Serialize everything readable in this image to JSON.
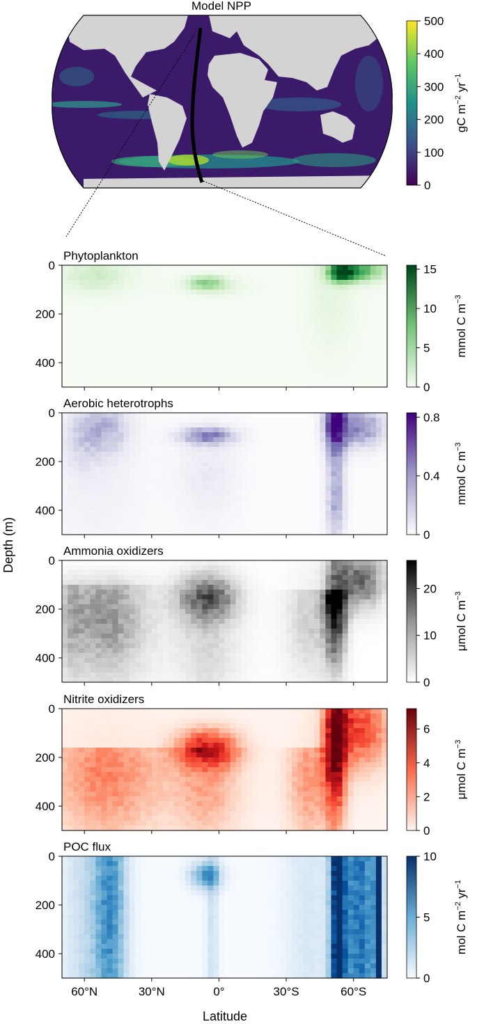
{
  "map": {
    "title": "Model NPP",
    "colorbar": {
      "label": "gC m",
      "label_sup1": "−2",
      "label_mid": " yr",
      "label_sup2": "−1",
      "ticks": [
        "0",
        "100",
        "200",
        "300",
        "400",
        "500"
      ],
      "range": [
        0,
        500
      ],
      "colormap": "viridis"
    },
    "colors": {
      "land": "#d3d3d3",
      "ocean_low": "#440154",
      "ocean_high": "#fde725",
      "transect": "#000000"
    }
  },
  "shared": {
    "ylabel": "Depth (m)",
    "xlabel": "Latitude",
    "x_ticks": [
      "60°N",
      "30°N",
      "0°",
      "30°S",
      "60°S"
    ],
    "y_ticks": [
      "0",
      "200",
      "400"
    ]
  },
  "chart_data": [
    {
      "type": "heatmap",
      "title": "Phytoplankton",
      "cbar_label": "mmol C m",
      "cbar_sup": "−3",
      "cbar_ticks": [
        "0",
        "5",
        "10",
        "15"
      ],
      "vmax": 15.5,
      "colormap": "Greens",
      "ylim": [
        500,
        0
      ],
      "xlim": [
        "70°N",
        "75°S"
      ]
    },
    {
      "type": "heatmap",
      "title": "Aerobic heterotrophs",
      "cbar_label": "mmol C m",
      "cbar_sup": "−3",
      "cbar_ticks": [
        "0",
        "0.4",
        "0.8"
      ],
      "vmax": 0.83,
      "colormap": "Purples",
      "ylim": [
        500,
        0
      ],
      "xlim": [
        "70°N",
        "75°S"
      ]
    },
    {
      "type": "heatmap",
      "title": "Ammonia oxidizers",
      "cbar_label": "μmol C m",
      "cbar_sup": "−3",
      "cbar_ticks": [
        "0",
        "10",
        "20"
      ],
      "vmax": 26,
      "colormap": "Greys",
      "ylim": [
        500,
        0
      ],
      "xlim": [
        "70°N",
        "75°S"
      ]
    },
    {
      "type": "heatmap",
      "title": "Nitrite oxidizers",
      "cbar_label": "μmol C m",
      "cbar_sup": "−3",
      "cbar_ticks": [
        "0",
        "2",
        "4",
        "6"
      ],
      "vmax": 7.2,
      "colormap": "Reds",
      "ylim": [
        500,
        0
      ],
      "xlim": [
        "70°N",
        "75°S"
      ]
    },
    {
      "type": "heatmap",
      "title": "POC flux",
      "cbar_label": "mol C m",
      "cbar_sup": "−2",
      "cbar_mid": " yr",
      "cbar_sup2": "−1",
      "cbar_ticks": [
        "0",
        "5",
        "10"
      ],
      "vmax": 10,
      "colormap": "Blues",
      "ylim": [
        500,
        0
      ],
      "xlim": [
        "70°N",
        "75°S"
      ]
    }
  ]
}
